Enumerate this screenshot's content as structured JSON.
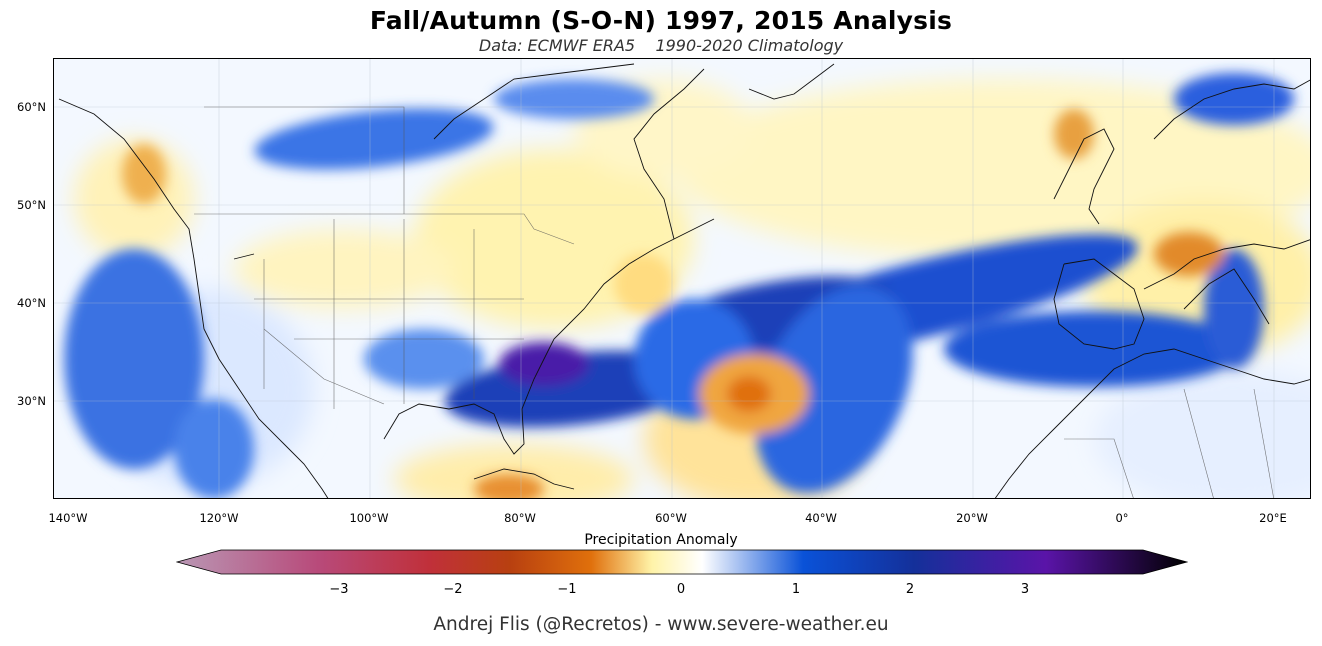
{
  "title": "Fall/Autumn (S-O-N) 1997, 2015 Analysis",
  "subtitle": "Data: ECMWF ERA5    1990-2020 Climatology",
  "map": {
    "lat_labels": [
      "60°N",
      "50°N",
      "40°N",
      "30°N"
    ],
    "lon_labels": [
      "140°W",
      "120°W",
      "100°W",
      "80°W",
      "60°W",
      "40°W",
      "20°W",
      "0°",
      "20°E"
    ]
  },
  "colorbar": {
    "label": "Precipitation Anomaly",
    "ticks": [
      "−3",
      "−2",
      "−1",
      "0",
      "1",
      "2",
      "3"
    ],
    "colors": {
      "very_dry": "#b997b4",
      "dry_red": "#c0303a",
      "dry_orange": "#e0700c",
      "dry_yellow": "#fff3a8",
      "neutral": "#ffffff",
      "wet_blue": "#0a52d8",
      "wet_dark": "#14309a",
      "very_wet": "#5a14a8",
      "extreme": "#000000"
    }
  },
  "credit": "Andrej Flis (@Recretos) - www.severe-weather.eu"
}
